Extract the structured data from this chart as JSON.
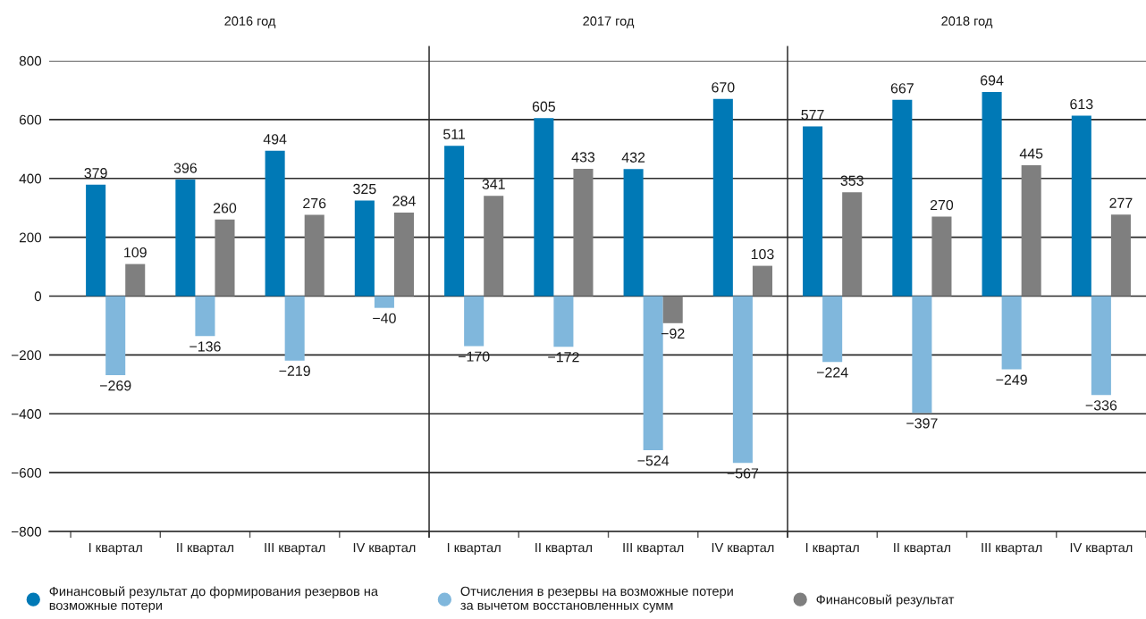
{
  "chart_data": {
    "type": "bar",
    "categories": [
      "I квартал",
      "II квартал",
      "III квартал",
      "IV квартал",
      "I квартал",
      "II квартал",
      "III квартал",
      "IV квартал",
      "I квартал",
      "II квартал",
      "III квартал",
      "IV квартал"
    ],
    "annotations": [
      "2016 год",
      "2017 год",
      "2018 год"
    ],
    "series": [
      {
        "name": "Финансовый результат до формирования резервов на\nвозможные потери",
        "color": "#0079b6",
        "values": [
          379,
          396,
          494,
          325,
          511,
          605,
          432,
          670,
          577,
          667,
          694,
          613
        ],
        "value_labels": [
          "379",
          "396",
          "494",
          "325",
          "511",
          "605",
          "432",
          "670",
          "577",
          "667",
          "694",
          "613"
        ]
      },
      {
        "name": "Отчисления в резервы на возможные потери\nза вычетом восстановленных сумм",
        "color": "#80b7dc",
        "values": [
          -269,
          -136,
          -219,
          -40,
          -170,
          -172,
          -524,
          -567,
          -224,
          -397,
          -249,
          -336
        ],
        "value_labels": [
          "−269",
          "−136",
          "−219",
          "−40",
          "−170",
          "−172",
          "−524",
          "−567",
          "−224",
          "−397",
          "−249",
          "−336"
        ]
      },
      {
        "name": "Финансовый результат",
        "color": "#7f7f7f",
        "values": [
          109,
          260,
          276,
          284,
          341,
          433,
          -92,
          103,
          353,
          270,
          445,
          277
        ],
        "value_labels": [
          "109",
          "260",
          "276",
          "284",
          "341",
          "433",
          "−92",
          "103",
          "353",
          "270",
          "445",
          "277"
        ]
      }
    ],
    "ylim": [
      -800,
      800
    ],
    "yticks": [
      {
        "value": -800,
        "label": "−800"
      },
      {
        "value": -600,
        "label": "−600"
      },
      {
        "value": -400,
        "label": "−400"
      },
      {
        "value": -200,
        "label": "−200"
      },
      0,
      200,
      400,
      600,
      800
    ],
    "grid": "y",
    "legend": "bottom"
  }
}
